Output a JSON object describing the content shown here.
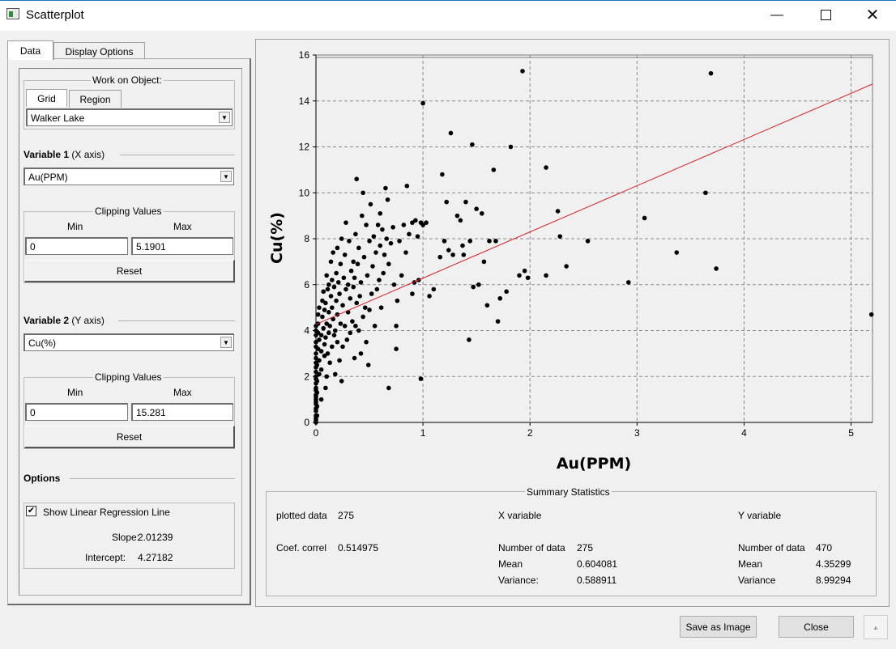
{
  "window": {
    "title": "Scatterplot"
  },
  "tabs": [
    {
      "label": "Data"
    },
    {
      "label": "Display Options"
    }
  ],
  "work_on_object": {
    "title": "Work on Object:",
    "tabs": [
      {
        "label": "Grid"
      },
      {
        "label": "Region"
      }
    ],
    "selected": "Walker Lake"
  },
  "variable1": {
    "heading": "Variable 1",
    "axis": "(X axis)",
    "selected": "Au(PPM)"
  },
  "variable2": {
    "heading": "Variable 2",
    "axis": "(Y axis)",
    "selected": "Cu(%)"
  },
  "clipping_x": {
    "title": "Clipping Values",
    "min_label": "Min",
    "max_label": "Max",
    "min": "0",
    "max": "5.1901",
    "reset": "Reset"
  },
  "clipping_y": {
    "title": "Clipping Values",
    "min_label": "Min",
    "max_label": "Max",
    "min": "0",
    "max": "15.281",
    "reset": "Reset"
  },
  "options": {
    "heading": "Options",
    "regression_checkbox": "Show Linear Regression Line",
    "regression_checked": true,
    "slope_label": "Slope:",
    "slope": "2.01239",
    "intercept_label": "Intercept:",
    "intercept": "4.27182"
  },
  "summary": {
    "title": "Summary Statistics",
    "plotted_label": "plotted data",
    "plotted": "275",
    "correl_label": "Coef. correl",
    "correl": "0.514975",
    "x_title": "X variable",
    "x_n_label": "Number of data",
    "x_n": "275",
    "x_mean_label": "Mean",
    "x_mean": "0.604081",
    "x_var_label": "Variance:",
    "x_var": "0.588911",
    "y_title": "Y variable",
    "y_n_label": "Number of data",
    "y_n": "470",
    "y_mean_label": "Mean",
    "y_mean": "4.35299",
    "y_var_label": "Variance",
    "y_var": "8.99294"
  },
  "buttons": {
    "save": "Save as Image",
    "close": "Close"
  },
  "chart_data": {
    "type": "scatter",
    "title": "",
    "xlabel": "Au(PPM)",
    "ylabel": "Cu(%)",
    "xlim": [
      0,
      5.2
    ],
    "ylim": [
      0,
      16
    ],
    "xticks": [
      0,
      1,
      2,
      3,
      4,
      5
    ],
    "yticks": [
      0,
      2,
      4,
      6,
      8,
      10,
      12,
      14,
      16
    ],
    "grid": true,
    "point_color": "#000000",
    "regression": {
      "slope": 2.01239,
      "intercept": 4.27182,
      "color": "#d42020"
    },
    "points": [
      [
        0,
        0
      ],
      [
        0,
        0.1
      ],
      [
        0,
        0.2
      ],
      [
        0,
        0.3
      ],
      [
        0,
        0.5
      ],
      [
        0,
        0.6
      ],
      [
        0,
        0.8
      ],
      [
        0,
        0.9
      ],
      [
        0,
        1.0
      ],
      [
        0,
        1.1
      ],
      [
        0,
        1.2
      ],
      [
        0,
        1.4
      ],
      [
        0,
        1.5
      ],
      [
        0,
        1.7
      ],
      [
        0,
        1.9
      ],
      [
        0,
        2.0
      ],
      [
        0,
        2.2
      ],
      [
        0,
        2.4
      ],
      [
        0,
        2.6
      ],
      [
        0,
        2.8
      ],
      [
        0,
        3.0
      ],
      [
        0,
        3.3
      ],
      [
        0,
        3.5
      ],
      [
        0,
        3.8
      ],
      [
        0,
        4.0
      ],
      [
        0,
        4.2
      ],
      [
        0.01,
        0.3
      ],
      [
        0.01,
        0.7
      ],
      [
        0.01,
        1.3
      ],
      [
        0.01,
        1.8
      ],
      [
        0.01,
        2.5
      ],
      [
        0.02,
        3.2
      ],
      [
        0.02,
        3.9
      ],
      [
        0.02,
        4.3
      ],
      [
        0.02,
        4.7
      ],
      [
        0.03,
        2.1
      ],
      [
        0.03,
        2.7
      ],
      [
        0.03,
        3.6
      ],
      [
        0.03,
        5.0
      ],
      [
        0.05,
        1.0
      ],
      [
        0.05,
        2.3
      ],
      [
        0.05,
        3.1
      ],
      [
        0.05,
        3.8
      ],
      [
        0.06,
        4.6
      ],
      [
        0.06,
        5.3
      ],
      [
        0.07,
        4.1
      ],
      [
        0.07,
        5.7
      ],
      [
        0.08,
        2.9
      ],
      [
        0.08,
        3.4
      ],
      [
        0.08,
        4.9
      ],
      [
        0.09,
        1.5
      ],
      [
        0.09,
        3.7
      ],
      [
        0.09,
        5.2
      ],
      [
        0.1,
        2.0
      ],
      [
        0.1,
        4.3
      ],
      [
        0.1,
        6.4
      ],
      [
        0.11,
        3.0
      ],
      [
        0.11,
        5.8
      ],
      [
        0.12,
        3.9
      ],
      [
        0.12,
        4.8
      ],
      [
        0.12,
        6.0
      ],
      [
        0.13,
        2.6
      ],
      [
        0.13,
        4.2
      ],
      [
        0.14,
        5.5
      ],
      [
        0.14,
        7.0
      ],
      [
        0.15,
        3.3
      ],
      [
        0.15,
        5.0
      ],
      [
        0.15,
        6.2
      ],
      [
        0.16,
        4.5
      ],
      [
        0.16,
        7.4
      ],
      [
        0.17,
        3.8
      ],
      [
        0.17,
        5.9
      ],
      [
        0.18,
        2.1
      ],
      [
        0.18,
        4.0
      ],
      [
        0.19,
        5.3
      ],
      [
        0.19,
        6.5
      ],
      [
        0.2,
        3.5
      ],
      [
        0.2,
        4.7
      ],
      [
        0.2,
        7.6
      ],
      [
        0.21,
        6.1
      ],
      [
        0.22,
        2.7
      ],
      [
        0.22,
        5.6
      ],
      [
        0.23,
        4.3
      ],
      [
        0.23,
        6.9
      ],
      [
        0.24,
        1.8
      ],
      [
        0.24,
        8.0
      ],
      [
        0.25,
        3.3
      ],
      [
        0.25,
        5.1
      ],
      [
        0.26,
        6.3
      ],
      [
        0.27,
        4.2
      ],
      [
        0.27,
        7.3
      ],
      [
        0.28,
        5.8
      ],
      [
        0.28,
        8.7
      ],
      [
        0.29,
        3.6
      ],
      [
        0.3,
        6.0
      ],
      [
        0.3,
        4.8
      ],
      [
        0.31,
        7.9
      ],
      [
        0.32,
        5.4
      ],
      [
        0.32,
        3.9
      ],
      [
        0.33,
        6.6
      ],
      [
        0.34,
        4.4
      ],
      [
        0.35,
        7.0
      ],
      [
        0.35,
        5.9
      ],
      [
        0.36,
        2.8
      ],
      [
        0.36,
        6.3
      ],
      [
        0.37,
        4.2
      ],
      [
        0.37,
        8.2
      ],
      [
        0.38,
        5.2
      ],
      [
        0.38,
        10.6
      ],
      [
        0.39,
        6.9
      ],
      [
        0.4,
        4.0
      ],
      [
        0.4,
        7.6
      ],
      [
        0.41,
        5.5
      ],
      [
        0.42,
        3.0
      ],
      [
        0.42,
        6.1
      ],
      [
        0.43,
        9.0
      ],
      [
        0.44,
        4.6
      ],
      [
        0.44,
        10.0
      ],
      [
        0.45,
        7.2
      ],
      [
        0.46,
        5.0
      ],
      [
        0.47,
        3.5
      ],
      [
        0.47,
        8.6
      ],
      [
        0.48,
        6.4
      ],
      [
        0.49,
        2.5
      ],
      [
        0.5,
        7.9
      ],
      [
        0.5,
        4.9
      ],
      [
        0.51,
        9.5
      ],
      [
        0.52,
        5.6
      ],
      [
        0.53,
        6.8
      ],
      [
        0.54,
        8.1
      ],
      [
        0.55,
        4.2
      ],
      [
        0.56,
        7.4
      ],
      [
        0.57,
        5.8
      ],
      [
        0.58,
        8.6
      ],
      [
        0.59,
        6.2
      ],
      [
        0.6,
        9.1
      ],
      [
        0.6,
        7.7
      ],
      [
        0.61,
        5.0
      ],
      [
        0.62,
        8.4
      ],
      [
        0.63,
        6.5
      ],
      [
        0.64,
        7.3
      ],
      [
        0.65,
        10.2
      ],
      [
        0.66,
        8.0
      ],
      [
        0.67,
        9.7
      ],
      [
        0.68,
        1.5
      ],
      [
        0.68,
        6.9
      ],
      [
        0.7,
        7.8
      ],
      [
        0.72,
        8.5
      ],
      [
        0.73,
        6.0
      ],
      [
        0.75,
        4.2
      ],
      [
        0.75,
        3.2
      ],
      [
        0.76,
        5.3
      ],
      [
        0.78,
        7.9
      ],
      [
        0.8,
        6.4
      ],
      [
        0.82,
        8.6
      ],
      [
        0.84,
        7.4
      ],
      [
        0.85,
        10.3
      ],
      [
        0.87,
        8.2
      ],
      [
        0.9,
        5.6
      ],
      [
        0.9,
        8.7
      ],
      [
        0.92,
        6.1
      ],
      [
        0.93,
        8.8
      ],
      [
        0.95,
        8.1
      ],
      [
        0.96,
        6.2
      ],
      [
        0.98,
        1.9
      ],
      [
        0.98,
        8.7
      ],
      [
        1.0,
        8.6
      ],
      [
        1.0,
        13.9
      ],
      [
        1.03,
        8.7
      ],
      [
        1.06,
        5.5
      ],
      [
        1.1,
        5.8
      ],
      [
        1.16,
        7.2
      ],
      [
        1.18,
        10.8
      ],
      [
        1.2,
        7.9
      ],
      [
        1.22,
        9.6
      ],
      [
        1.24,
        7.5
      ],
      [
        1.26,
        12.6
      ],
      [
        1.28,
        7.3
      ],
      [
        1.32,
        9.0
      ],
      [
        1.35,
        8.8
      ],
      [
        1.37,
        7.7
      ],
      [
        1.38,
        7.3
      ],
      [
        1.4,
        9.6
      ],
      [
        1.43,
        3.6
      ],
      [
        1.44,
        7.9
      ],
      [
        1.46,
        12.1
      ],
      [
        1.47,
        5.9
      ],
      [
        1.5,
        9.3
      ],
      [
        1.52,
        6.0
      ],
      [
        1.55,
        9.1
      ],
      [
        1.57,
        7.0
      ],
      [
        1.6,
        5.1
      ],
      [
        1.62,
        7.9
      ],
      [
        1.66,
        11.0
      ],
      [
        1.68,
        7.9
      ],
      [
        1.7,
        4.4
      ],
      [
        1.72,
        5.4
      ],
      [
        1.78,
        5.7
      ],
      [
        1.82,
        12.0
      ],
      [
        1.9,
        6.4
      ],
      [
        1.93,
        15.3
      ],
      [
        1.95,
        6.6
      ],
      [
        1.98,
        6.3
      ],
      [
        2.15,
        11.1
      ],
      [
        2.15,
        6.4
      ],
      [
        2.26,
        9.2
      ],
      [
        2.28,
        8.1
      ],
      [
        2.34,
        6.8
      ],
      [
        2.54,
        7.9
      ],
      [
        2.92,
        6.1
      ],
      [
        3.07,
        8.9
      ],
      [
        3.37,
        7.4
      ],
      [
        3.64,
        10.0
      ],
      [
        3.69,
        15.2
      ],
      [
        3.74,
        6.7
      ],
      [
        5.19,
        4.7
      ]
    ]
  }
}
